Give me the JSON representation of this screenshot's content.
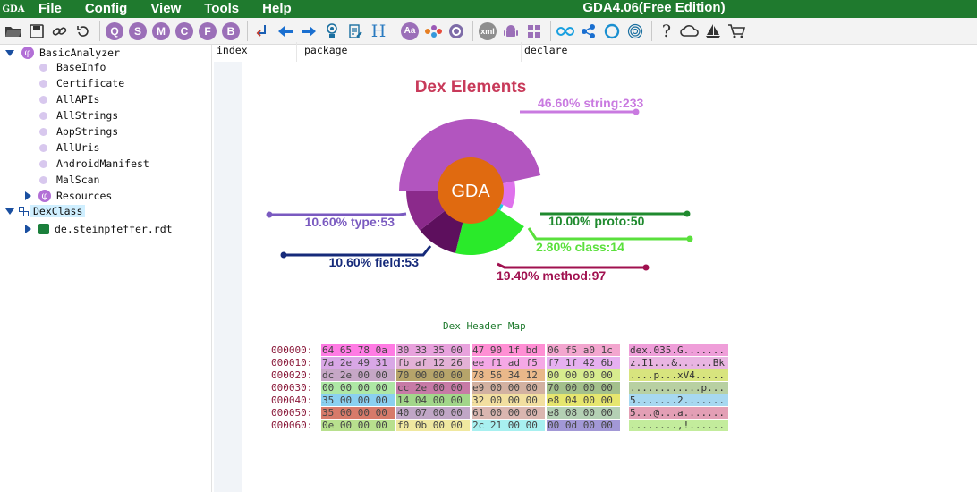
{
  "app": {
    "logo": "GDA",
    "title": "GDA4.06(Free Edition)",
    "menu": [
      "File",
      "Config",
      "View",
      "Tools",
      "Help"
    ]
  },
  "toolbar": {
    "icons": [
      "open-folder-icon",
      "save-icon",
      "link-icon",
      "refresh-icon",
      "search-q-icon",
      "search-s-icon",
      "search-m-icon",
      "search-c-icon",
      "search-f-icon",
      "search-b-icon",
      "goto-icon",
      "back-arrow-icon",
      "forward-arrow-icon",
      "person-icon",
      "edit-icon",
      "header-h-icon",
      "font-aa-icon",
      "graph-icon",
      "settings-gear-icon",
      "xml-icon",
      "android-icon",
      "windows-icon",
      "infinity-icon",
      "network-icon",
      "circle-icon",
      "fingerprint-icon",
      "help-icon",
      "cloud-icon",
      "sailboat-icon",
      "cart-icon"
    ],
    "labels": {
      "q": "Q",
      "s": "S",
      "m": "M",
      "c": "C",
      "f": "F",
      "b": "B",
      "h": "H",
      "aa": "Aa",
      "xml": "xml",
      "help": "?"
    }
  },
  "tree": {
    "root": "BasicAnalyzer",
    "children": [
      "BaseInfo",
      "Certificate",
      "AllAPIs",
      "AllStrings",
      "AppStrings",
      "AllUris",
      "AndroidManifest",
      "MalScan"
    ],
    "resources": "Resources",
    "dexclass": "DexClass",
    "package": "de.steinpfeffer.rdt"
  },
  "columns": [
    "index",
    "package",
    "declare"
  ],
  "chart_data": {
    "type": "pie",
    "title": "Dex Elements",
    "center_label": "GDA",
    "slices": [
      {
        "label": "46.60% string:233",
        "name": "string",
        "value": 233,
        "percent": 46.6,
        "color": "#b255bf"
      },
      {
        "label": "10.00% proto:50",
        "name": "proto",
        "value": 50,
        "percent": 10.0,
        "color": "#df72ec"
      },
      {
        "label": "2.80% class:14",
        "name": "class",
        "value": 14,
        "percent": 2.8,
        "color": "#1fc7e6"
      },
      {
        "label": "19.40% method:97",
        "name": "method",
        "value": 97,
        "percent": 19.4,
        "color": "#2aea2a"
      },
      {
        "label": "10.60% field:53",
        "name": "field",
        "value": 53,
        "percent": 10.6,
        "color": "#5d0f5d"
      },
      {
        "label": "10.60% type:53",
        "name": "type",
        "value": 53,
        "percent": 10.6,
        "color": "#8b2a8b"
      }
    ],
    "label_colors": {
      "string": "#c97ae0",
      "proto": "#1f8a2e",
      "class": "#5ae03c",
      "method": "#a0104f",
      "field": "#162a7a",
      "type": "#7a5ac0"
    }
  },
  "hexmap": {
    "title": "Dex Header Map",
    "rows": [
      {
        "offset": "000000:",
        "bytes": [
          "64 65 78 0a",
          "30 33 35 00",
          "47 90 1f bd",
          "06 f5 a0 1c"
        ],
        "ascii": "dex.035.G......."
      },
      {
        "offset": "000010:",
        "bytes": [
          "7a 2e 49 31",
          "fb af 12 26",
          "ee f1 ad f5",
          "f7 1f 42 6b"
        ],
        "ascii": "z.I1...&......Bk"
      },
      {
        "offset": "000020:",
        "bytes": [
          "dc 2e 00 00",
          "70 00 00 00",
          "78 56 34 12",
          "00 00 00 00"
        ],
        "ascii": "....p...xV4....."
      },
      {
        "offset": "000030:",
        "bytes": [
          "00 00 00 00",
          "cc 2e 00 00",
          "e9 00 00 00",
          "70 00 00 00"
        ],
        "ascii": "............p..."
      },
      {
        "offset": "000040:",
        "bytes": [
          "35 00 00 00",
          "14 04 00 00",
          "32 00 00 00",
          "e8 04 00 00"
        ],
        "ascii": "5.......2......."
      },
      {
        "offset": "000050:",
        "bytes": [
          "35 00 00 00",
          "40 07 00 00",
          "61 00 00 00",
          "e8 08 00 00"
        ],
        "ascii": "5...@...a......."
      },
      {
        "offset": "000060:",
        "bytes": [
          "0e 00 00 00",
          "f0 0b 00 00",
          "2c 21 00 00",
          "00 0d 00 00"
        ],
        "ascii": "........,!......"
      }
    ],
    "colors": [
      [
        "#ff7be4",
        "#e8a2dd",
        "#ff8fd4",
        "#f3a6cf"
      ],
      [
        "#d9a7e6",
        "#e3b1d6",
        "#f5a8e6",
        "#e6b0f0"
      ],
      [
        "#c6a7c6",
        "#b6a46a",
        "#e9b88a",
        "#d7ec8e"
      ],
      [
        "#aee8a5",
        "#c77aa6",
        "#d2b1a1",
        "#a3c08c"
      ],
      [
        "#8bd0f0",
        "#a2d68a",
        "#f2dfa0",
        "#e6e66e"
      ],
      [
        "#d77a6a",
        "#c0a6c6",
        "#dab6b0",
        "#b4d0b4"
      ],
      [
        "#b8e08e",
        "#f0e8a0",
        "#a8f0f0",
        "#a298d6"
      ]
    ],
    "ascii_colors": [
      "#ef9ed9",
      "#e9b5e2",
      "#d8e47e",
      "#b8d0a2",
      "#a7d8f0",
      "#e39fb5",
      "#c3ec9c"
    ]
  }
}
